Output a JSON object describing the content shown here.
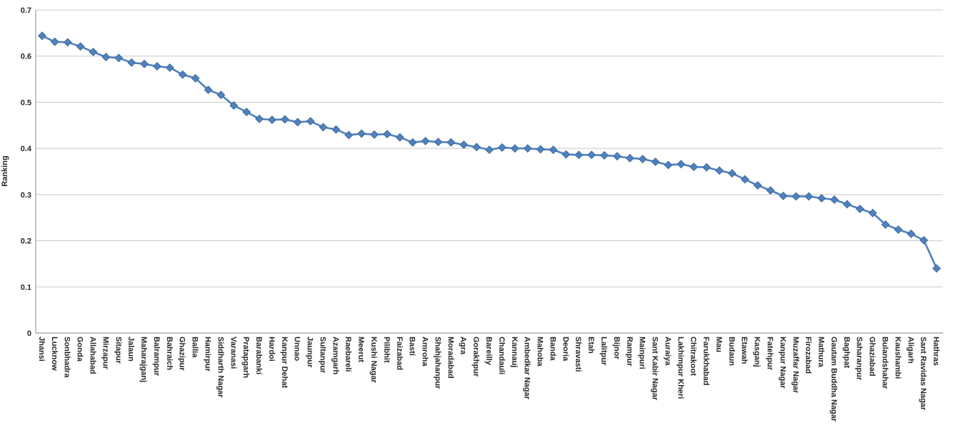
{
  "chart_data": {
    "type": "line",
    "title": "",
    "xlabel": "",
    "ylabel": "Ranking",
    "ylim": [
      0,
      0.7
    ],
    "yticks": [
      0,
      0.1,
      0.2,
      0.3,
      0.4,
      0.5,
      0.6,
      0.7
    ],
    "ytick_labels": [
      "0",
      "0.1",
      "0.2",
      "0.3",
      "0.4",
      "0.5",
      "0.6",
      "0.7"
    ],
    "grid": true,
    "legend_position": "none",
    "marker": "diamond",
    "series_name": "Ranking",
    "categories": [
      "Jhansi",
      "Lucknow",
      "Sonbhadra",
      "Gonda",
      "Allahabad",
      "Mirzapur",
      "Sitapur",
      "Jalaun",
      "Maharajganj",
      "Balrampur",
      "Bahraich",
      "Ghazipur",
      "Ballia",
      "Hamirpur",
      "Siddharth Nagar",
      "Varanasi",
      "Pratapgarh",
      "Barabanki",
      "Hardoi",
      "Kanpur Dehat",
      "Unnao",
      "Jaunpur",
      "Sultanpur",
      "Azamgarh",
      "Raebareli",
      "Meerut",
      "Kushi Nagar",
      "Pilibhit",
      "Faizabad",
      "Basti",
      "Amroha",
      "Shahjahanpur",
      "Moradabad",
      "Agra",
      "Gorakhpur",
      "Bareilly",
      "Chandauli",
      "Kannauj",
      "Ambedkar Nagar",
      "Mahoba",
      "Banda",
      "Deoria",
      "Shravasti",
      "Etah",
      "Lalitpur",
      "Bijnor",
      "Rampur",
      "Mainpuri",
      "Sant Kabir Nagar",
      "Auraiya",
      "Lakhimpur Kheri",
      "Chitrakoot",
      "Farukkhabad",
      "Mau",
      "Budaun",
      "Etawah",
      "Kasganj",
      "Fatehpur",
      "Kanpur Nagar",
      "Muzaffar Nagar",
      "Firozabad",
      "Mathura",
      "Gautam Buddha Nagar",
      "Baghpat",
      "Saharanpur",
      "Ghaziabad",
      "Bulandshahar",
      "Kaushambi",
      "Aligarh",
      "Sant Ravidas Nagar",
      "Hathras"
    ],
    "values": [
      0.644,
      0.631,
      0.63,
      0.621,
      0.609,
      0.598,
      0.596,
      0.586,
      0.583,
      0.578,
      0.575,
      0.56,
      0.552,
      0.527,
      0.516,
      0.493,
      0.479,
      0.464,
      0.462,
      0.463,
      0.457,
      0.459,
      0.446,
      0.441,
      0.429,
      0.432,
      0.43,
      0.431,
      0.424,
      0.413,
      0.416,
      0.414,
      0.413,
      0.408,
      0.403,
      0.397,
      0.402,
      0.4,
      0.4,
      0.398,
      0.397,
      0.387,
      0.386,
      0.386,
      0.385,
      0.383,
      0.379,
      0.377,
      0.371,
      0.364,
      0.366,
      0.36,
      0.359,
      0.352,
      0.346,
      0.333,
      0.32,
      0.309,
      0.297,
      0.296,
      0.296,
      0.292,
      0.289,
      0.279,
      0.269,
      0.26,
      0.235,
      0.224,
      0.215,
      0.201,
      0.14
    ]
  },
  "colors": {
    "series": "#4F81BD",
    "marker_edge": "#3A6494",
    "gridline": "#C9C9C9",
    "axis": "#9E9E9E",
    "text": "#262626",
    "background": "#FFFFFF"
  }
}
